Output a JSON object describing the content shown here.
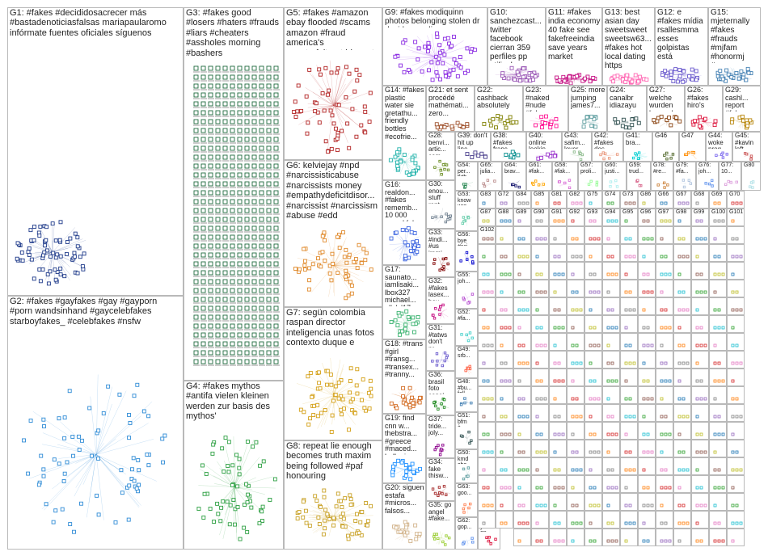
{
  "groups": [
    {
      "id": "G1",
      "label": "G1: #fakes #decididosacrecer más #bastadenoticiasfalsas mariapaularomo infórmate fuentes oficiales síguenos",
      "color": "#1e3a8a"
    },
    {
      "id": "G2",
      "label": "G2: #fakes #gayfakes #gay #gayporn #porn wandsinhand #gaycelebfakes starboyfakes_ #celebfakes #nsfw",
      "color": "#2e8bd6"
    },
    {
      "id": "G3",
      "label": "G3: #fakes good #losers #haters #frauds #liars #cheaters #assholes morning #bashers",
      "color": "#1f6b3f"
    },
    {
      "id": "G4",
      "label": "G4: #fakes mythos #antifa vielen kleinen werden zur basis des mythos'",
      "color": "#2ea043"
    },
    {
      "id": "G5",
      "label": "G5: #fakes #amazon ebay flooded #scams amazon #fraud america's counterfeit_rpt biggest",
      "color": "#b22222"
    },
    {
      "id": "G6",
      "label": "G6: kelviejay #npd #narcissisticabuse #narcissists money #empathydeficitdisor... #narcissist #narcissism #abuse #edd",
      "color": "#e08a2c"
    },
    {
      "id": "G7",
      "label": "G7: segün colombia raspan director inteligencia unas fotos contexto duque e",
      "color": "#d4a017"
    },
    {
      "id": "G8",
      "label": "G8: repeat lie enough becomes truth maxim being followed #paf honouring",
      "color": "#c9a227"
    },
    {
      "id": "G9",
      "label": "G9: #fakes modiquinn photos belonging stolen dr david samadi",
      "color": "#8a2be2"
    },
    {
      "id": "G10",
      "label": "G10: sanchezcast... twitter facebook cierran 359 perfiles pp utilizaban",
      "color": "#9b59b6"
    },
    {
      "id": "G11",
      "label": "G11: #fakes india economy 40 fake see fakefreeindia save years market",
      "color": "#c71585"
    },
    {
      "id": "G13",
      "label": "G13: best asian day sweetsweet sweetsw63... #fakes hot local dating https",
      "color": "#ff69b4"
    },
    {
      "id": "G12",
      "label": "G12: e #fakes mídia rsallesmma esses golpistas está governo...",
      "color": "#6a5acd"
    },
    {
      "id": "G15",
      "label": "G15: mjeternally #fakes #frauds #mjfam #honormj #scams...",
      "color": "#4682b4"
    },
    {
      "id": "G14",
      "label": "G14: #fakes plastic water sie gretathu... friendly bottles #ecofrie...",
      "color": "#20b2aa"
    },
    {
      "id": "G21",
      "label": "G21: et sent procédé mathémati... zero...",
      "color": "#a0522d"
    },
    {
      "id": "G22",
      "label": "G22: cashback absolutely zero...",
      "color": "#808000"
    },
    {
      "id": "G23",
      "label": "G23: #naked #nude #fakes...",
      "color": "#ff1493"
    },
    {
      "id": "G25",
      "label": "G25: more jumping james7...",
      "color": "#5f9ea0"
    },
    {
      "id": "G24",
      "label": "G24: canalbr idiazayu encontr...",
      "color": "#2f4f4f"
    },
    {
      "id": "G27",
      "label": "G27: welche wurden besond...",
      "color": "#8b4513"
    },
    {
      "id": "G26",
      "label": "G26: #fakes hiro's sex...",
      "color": "#dc143c"
    },
    {
      "id": "G29",
      "label": "G29: cashl... report #fake...",
      "color": "#b8860b"
    },
    {
      "id": "G28",
      "label": "G28: benvi... artic... com...",
      "color": "#6b8e23"
    },
    {
      "id": "G39",
      "label": "G39: don't hit up line...",
      "color": "#483d8b"
    },
    {
      "id": "G38",
      "label": "G38: #fakes franc...",
      "color": "#008b8b"
    },
    {
      "id": "G40",
      "label": "G40: online lookin...",
      "color": "#9932cc"
    },
    {
      "id": "G43",
      "label": "G43: safim... lover...",
      "color": "#8fbc8f"
    },
    {
      "id": "G42",
      "label": "G42: #fakes des fuckin...",
      "color": "#e9967a"
    },
    {
      "id": "G41",
      "label": "G41: bra...",
      "color": "#00ced1"
    },
    {
      "id": "G46",
      "label": "G46",
      "color": "#556b2f"
    },
    {
      "id": "G47",
      "label": "G47",
      "color": "#ff8c00"
    },
    {
      "id": "G44",
      "label": "G44: woke prog...",
      "color": "#7b68ee"
    },
    {
      "id": "G45",
      "label": "G45: #kavin left...",
      "color": "#cd5c5c"
    },
    {
      "id": "G16",
      "label": "G16: realdon... #fakes rememb... 10 000 sword fake oh...",
      "color": "#4169e1"
    },
    {
      "id": "G30",
      "label": "G30: enou... stuff rant...",
      "color": "#708090"
    },
    {
      "id": "G54",
      "label": "G54: per... tkth...",
      "color": "#2e8b57"
    },
    {
      "id": "G65",
      "label": "G65: julia...",
      "color": "#bc8f8f"
    },
    {
      "id": "G64",
      "label": "G64: brav...",
      "color": "#191970"
    },
    {
      "id": "G61",
      "label": "G61: #fak...",
      "color": "#ffa500"
    },
    {
      "id": "G58",
      "label": "G58: #fak...",
      "color": "#da70d6"
    },
    {
      "id": "G57",
      "label": "G57: proli...",
      "color": "#98fb98"
    },
    {
      "id": "G60",
      "label": "G60: justi...",
      "color": "#afeeee"
    },
    {
      "id": "G59",
      "label": "G59: trud...",
      "color": "#db7093"
    },
    {
      "id": "G78",
      "label": "G78: #re...",
      "color": "#cd853f"
    },
    {
      "id": "G79",
      "label": "G79: #fa...",
      "color": "#b0c4de"
    },
    {
      "id": "G76",
      "label": "G76: joh...",
      "color": "#6495ed"
    },
    {
      "id": "G77",
      "label": "G77: 10...",
      "color": "#dda0dd"
    },
    {
      "id": "G80",
      "label": "G80",
      "color": "#b0e0e6"
    },
    {
      "id": "G33",
      "label": "G33: #indi... #us immi...",
      "color": "#800000"
    },
    {
      "id": "G53",
      "label": "G53: know wro...",
      "color": "#66cdaa"
    },
    {
      "id": "G56",
      "label": "G56: bye #sci...",
      "color": "#0000cd"
    },
    {
      "id": "G55",
      "label": "G55: joh...",
      "color": "#ba55d3"
    },
    {
      "id": "G17",
      "label": "G17: saunato... iamlisaki... lbox327 michael... allylcl17 bfrownfe...",
      "color": "#3cb371"
    },
    {
      "id": "G32",
      "label": "G32: #fakes lasex... hoy...",
      "color": "#c71585"
    },
    {
      "id": "G52",
      "label": "G52: #fa...",
      "color": "#48d1cc"
    },
    {
      "id": "G18",
      "label": "G18: #trans #girl #transg... #transex... #tranny...",
      "color": "#d2691e"
    },
    {
      "id": "G31",
      "label": "G31: #tatws don't pr...",
      "color": "#6a5acd"
    },
    {
      "id": "G36",
      "label": "G36: brasil foto conej...",
      "color": "#228b22"
    },
    {
      "id": "G49",
      "label": "G49: srb...",
      "color": "#ff6347"
    },
    {
      "id": "G48",
      "label": "G48: #bu... foll...",
      "color": "#4682b4"
    },
    {
      "id": "G19",
      "label": "G19: find cnn w... thebstra... #greece #maced... hellenic...",
      "color": "#1e90ff"
    },
    {
      "id": "G37",
      "label": "G37: tride... joly...",
      "color": "#8b008b"
    },
    {
      "id": "G51",
      "label": "G51: bfm à...",
      "color": "#2f4f4f"
    },
    {
      "id": "G34",
      "label": "G34: fake thisw...",
      "color": "#a52a2a"
    },
    {
      "id": "G50",
      "label": "G50: kmd cha...",
      "color": "#5f9ea0"
    },
    {
      "id": "G20",
      "label": "G20: siguen estafa #micros... falsos...",
      "color": "#d2b48c"
    },
    {
      "id": "G35",
      "label": "G35: go angel #fake...",
      "color": "#9acd32"
    },
    {
      "id": "G63",
      "label": "G63: goo...",
      "color": "#ff7f50"
    },
    {
      "id": "G62",
      "label": "G62: gop...",
      "color": "#6495ed"
    },
    {
      "id": "G71",
      "label": "G71: you on...",
      "color": "#dc143c"
    }
  ],
  "mini_labels": [
    "G83",
    "G72",
    "G84",
    "G85",
    "G81",
    "G82",
    "G75",
    "G74",
    "G73",
    "G86",
    "G66",
    "G67",
    "G68",
    "G69",
    "G70",
    "G87",
    "G88",
    "G89",
    "G90",
    "G91",
    "G92",
    "G93",
    "G94",
    "G95",
    "G96",
    "G97",
    "G98",
    "G99",
    "G100",
    "G101",
    "G102"
  ]
}
